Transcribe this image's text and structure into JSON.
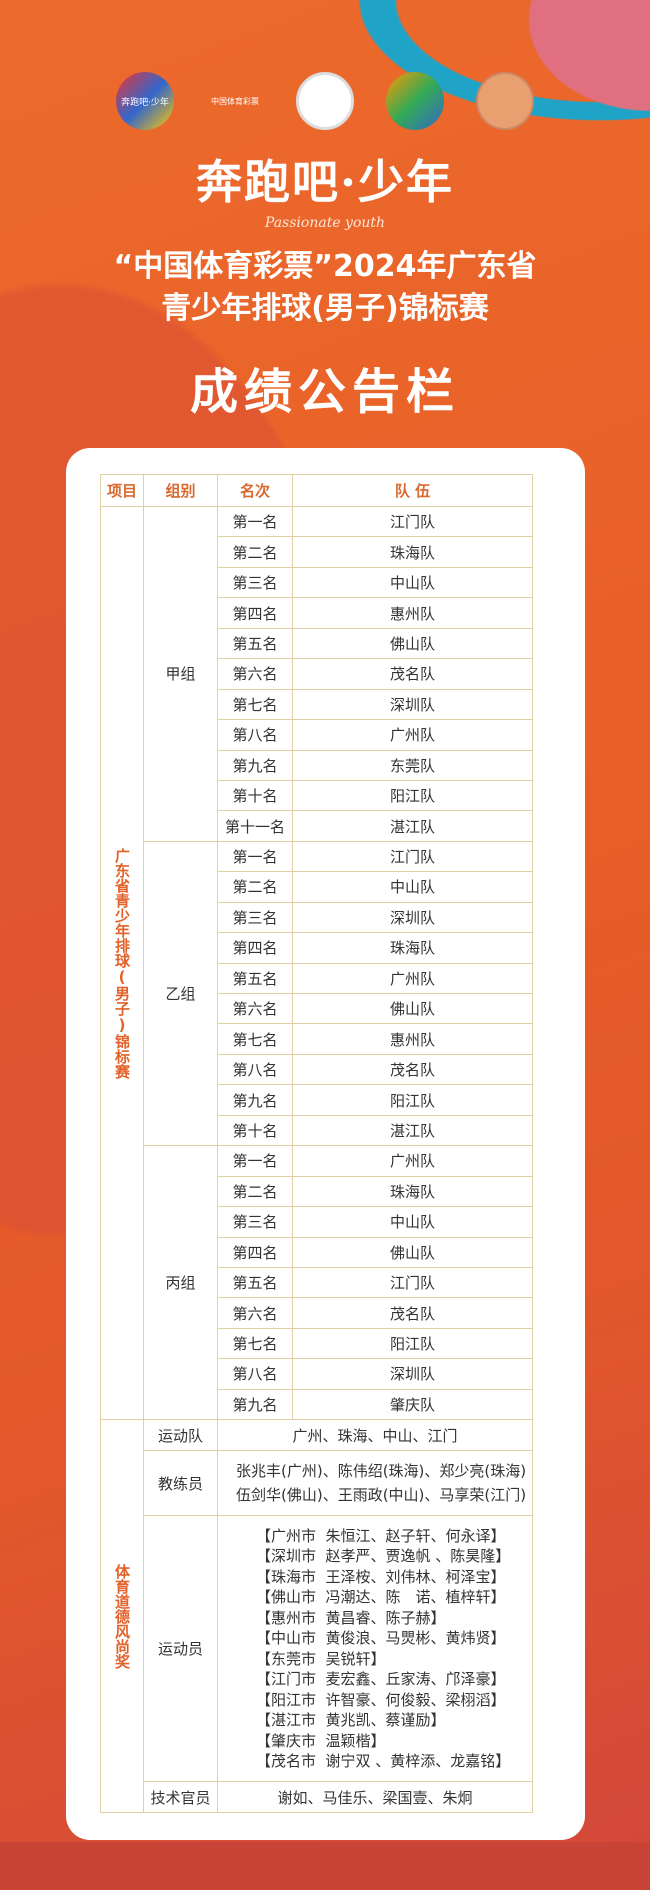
{
  "header": {
    "logos": [
      {
        "name": "happy-run-logo",
        "text": "奔跑吧·少年"
      },
      {
        "name": "china-sports-lottery-logo",
        "text": "中国体育彩票"
      },
      {
        "name": "association-seal-logo",
        "text": ""
      },
      {
        "name": "volleyball-association-logo",
        "text": ""
      },
      {
        "name": "sports-bureau-logo",
        "text": ""
      }
    ],
    "slogan": "奔跑吧·少年",
    "slogan_en": "Passionate youth",
    "title_line1": "“中国体育彩票”2024年广东省",
    "title_line2": "青少年排球(男子)锦标赛",
    "board_title": "成绩公告栏"
  },
  "colors": {
    "background": "#e8612a",
    "accent": "#d9692e",
    "border": "#e2cfa6"
  },
  "table": {
    "headers": [
      "项目",
      "组别",
      "名次",
      "队 伍"
    ],
    "event": "广东省青少年排球(男子)锦标赛",
    "groups": [
      {
        "name": "甲组",
        "rows": [
          [
            "第一名",
            "江门队"
          ],
          [
            "第二名",
            "珠海队"
          ],
          [
            "第三名",
            "中山队"
          ],
          [
            "第四名",
            "惠州队"
          ],
          [
            "第五名",
            "佛山队"
          ],
          [
            "第六名",
            "茂名队"
          ],
          [
            "第七名",
            "深圳队"
          ],
          [
            "第八名",
            "广州队"
          ],
          [
            "第九名",
            "东莞队"
          ],
          [
            "第十名",
            "阳江队"
          ],
          [
            "第十一名",
            "湛江队"
          ]
        ]
      },
      {
        "name": "乙组",
        "rows": [
          [
            "第一名",
            "江门队"
          ],
          [
            "第二名",
            "中山队"
          ],
          [
            "第三名",
            "深圳队"
          ],
          [
            "第四名",
            "珠海队"
          ],
          [
            "第五名",
            "广州队"
          ],
          [
            "第六名",
            "佛山队"
          ],
          [
            "第七名",
            "惠州队"
          ],
          [
            "第八名",
            "茂名队"
          ],
          [
            "第九名",
            "阳江队"
          ],
          [
            "第十名",
            "湛江队"
          ]
        ]
      },
      {
        "name": "丙组",
        "rows": [
          [
            "第一名",
            "广州队"
          ],
          [
            "第二名",
            "珠海队"
          ],
          [
            "第三名",
            "中山队"
          ],
          [
            "第四名",
            "佛山队"
          ],
          [
            "第五名",
            "江门队"
          ],
          [
            "第六名",
            "茂名队"
          ],
          [
            "第七名",
            "阳江队"
          ],
          [
            "第八名",
            "深圳队"
          ],
          [
            "第九名",
            "肇庆队"
          ]
        ]
      }
    ],
    "award": {
      "name": "体育道德风尚奖",
      "teams_label": "运动队",
      "teams": "广州、珠海、中山、江门",
      "coaches_label": "教练员",
      "coaches": [
        "张兆丰(广州)、陈伟绍(珠海)、郑少亮(珠海)",
        "伍剑华(佛山)、王雨政(中山)、马享荣(江门)"
      ],
      "athletes_label": "运动员",
      "athletes": [
        "【广州市  朱恒江、赵子轩、何永译】",
        "【深圳市  赵孝严、贾逸帆 、陈昊隆】",
        "【珠海市  王泽桉、刘伟林、柯泽宝】",
        "【佛山市  冯潮达、陈　诺、植梓轩】",
        "【惠州市  黄昌睿、陈子赫】",
        "【中山市  黄俊浪、马煛彬、黄炜贤】",
        "【东莞市  吴锐轩】",
        "【江门市  麦宏鑫、丘家涛、邝泽豪】",
        "【阳江市  许智豪、何俊毅、梁栩滔】",
        "【湛江市  黄兆凯、蔡谨励】",
        "【肇庆市  温颖楷】",
        "【茂名市  谢宁双 、黄梓添、龙嘉铭】"
      ],
      "officials_label": "技术官员",
      "officials": "谢如、马佳乐、梁国壹、朱炯"
    }
  }
}
